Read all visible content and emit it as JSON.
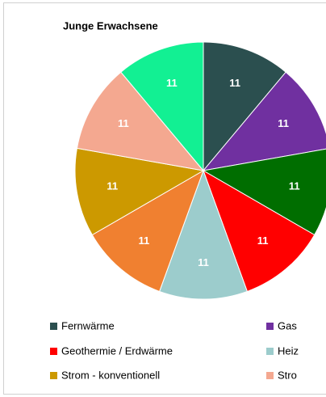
{
  "chart_data": {
    "type": "pie",
    "title": "Junge Erwachsene",
    "categories": [
      "Fernwärme",
      "Gas",
      null,
      "Geothermie / Erdwärme",
      "Heiz",
      null,
      "Strom - konventionell",
      "Stro",
      null
    ],
    "values": [
      11,
      11,
      11,
      11,
      11,
      11,
      11,
      11,
      11
    ],
    "colors": [
      "#2b4f4f",
      "#7030a0",
      "#006e00",
      "#ff0000",
      "#9ccccc",
      "#f08030",
      "#cc9900",
      "#f4a890",
      "#12f093"
    ],
    "legend": "bottom"
  }
}
